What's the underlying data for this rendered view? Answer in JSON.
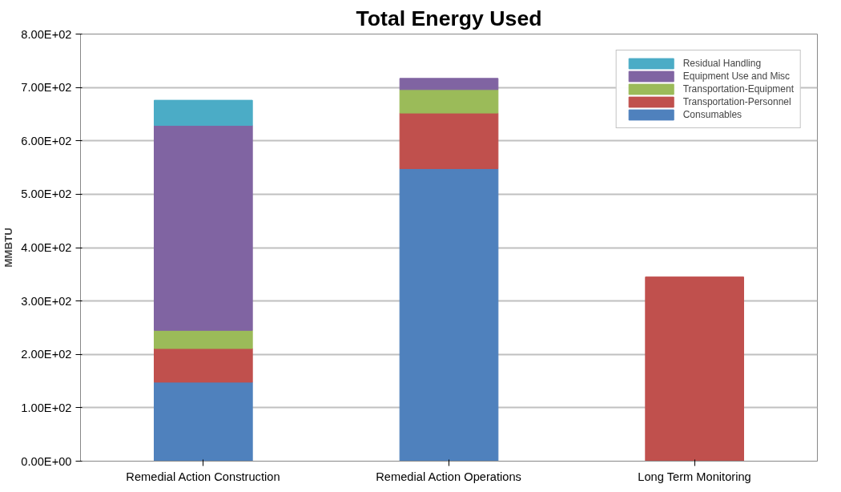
{
  "chart_data": {
    "type": "bar",
    "stacked": true,
    "title": "Total Energy Used",
    "ylabel": "MMBTU",
    "categories": [
      "Remedial Action Construction",
      "Remedial Action Operations",
      "Long Term Monitoring"
    ],
    "series": [
      {
        "name": "Consumables",
        "color": "#4f81bd",
        "values": [
          148,
          548,
          0
        ]
      },
      {
        "name": "Transportation-Personnel",
        "color": "#c0504d",
        "values": [
          63,
          104,
          345
        ]
      },
      {
        "name": "Transportation-Equipment",
        "color": "#9bbb59",
        "values": [
          34,
          44,
          0
        ]
      },
      {
        "name": "Equipment Use and Misc",
        "color": "#8064a2",
        "values": [
          384,
          21,
          0
        ]
      },
      {
        "name": "Residual Handling",
        "color": "#4bacc6",
        "values": [
          47,
          0,
          0
        ]
      }
    ],
    "ylim": [
      0,
      800
    ],
    "yticks": [
      {
        "value": 0,
        "label": "0.00E+00"
      },
      {
        "value": 100,
        "label": "1.00E+02"
      },
      {
        "value": 200,
        "label": "2.00E+02"
      },
      {
        "value": 300,
        "label": "3.00E+02"
      },
      {
        "value": 400,
        "label": "4.00E+02"
      },
      {
        "value": 500,
        "label": "5.00E+02"
      },
      {
        "value": 600,
        "label": "6.00E+02"
      },
      {
        "value": 700,
        "label": "7.00E+02"
      },
      {
        "value": 800,
        "label": "8.00E+02"
      }
    ],
    "grid": "y",
    "legend": "top right"
  }
}
